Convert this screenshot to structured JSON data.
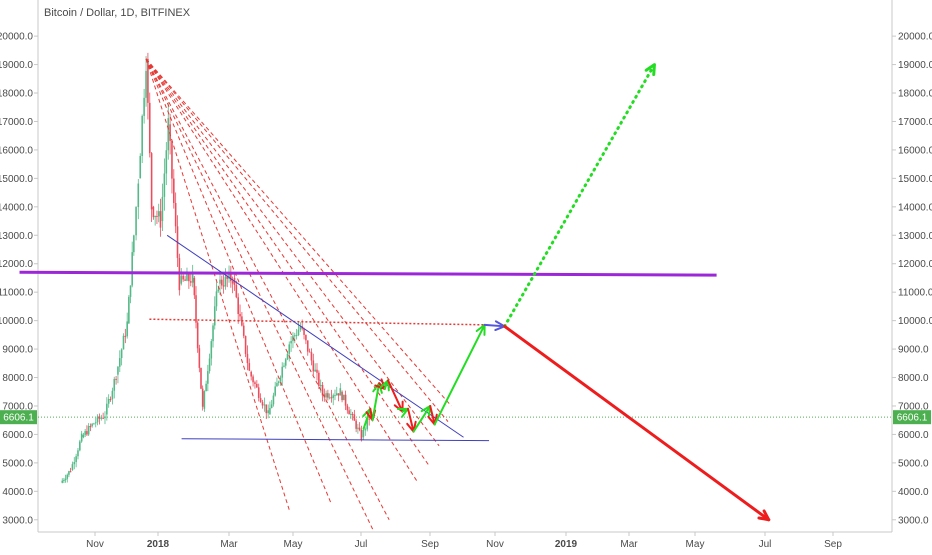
{
  "chart_data": {
    "type": "line",
    "title": "Bitcoin / Dollar, 1D, BITFINEX",
    "x_tick_labels": [
      "Nov",
      "2018",
      "Mar",
      "May",
      "Jul",
      "Sep",
      "Nov",
      "2019",
      "Mar",
      "May",
      "Jul",
      "Sep"
    ],
    "x_tick_bold": [
      false,
      true,
      false,
      false,
      false,
      false,
      false,
      true,
      false,
      false,
      false,
      false
    ],
    "y_ticks": [
      3000,
      4000,
      5000,
      6000,
      7000,
      8000,
      9000,
      10000,
      11000,
      12000,
      13000,
      14000,
      15000,
      16000,
      17000,
      18000,
      19000,
      20000
    ],
    "ylim": [
      2500,
      20300
    ],
    "last_price": "6606.1",
    "last_price_value": 6606.1,
    "grid": false,
    "price_series": [
      {
        "date": "2017-10-01",
        "value": 4300
      },
      {
        "date": "2017-10-10",
        "value": 4750
      },
      {
        "date": "2017-10-20",
        "value": 5900
      },
      {
        "date": "2017-10-31",
        "value": 6400
      },
      {
        "date": "2017-11-10",
        "value": 6700
      },
      {
        "date": "2017-11-20",
        "value": 8100
      },
      {
        "date": "2017-11-30",
        "value": 9900
      },
      {
        "date": "2017-12-06",
        "value": 13000
      },
      {
        "date": "2017-12-10",
        "value": 15000
      },
      {
        "date": "2017-12-17",
        "value": 19200
      },
      {
        "date": "2017-12-22",
        "value": 14000
      },
      {
        "date": "2017-12-30",
        "value": 13500
      },
      {
        "date": "2018-01-06",
        "value": 16900
      },
      {
        "date": "2018-01-16",
        "value": 11300
      },
      {
        "date": "2018-01-28",
        "value": 11500
      },
      {
        "date": "2018-02-06",
        "value": 6900
      },
      {
        "date": "2018-02-20",
        "value": 11300
      },
      {
        "date": "2018-03-05",
        "value": 11500
      },
      {
        "date": "2018-03-20",
        "value": 8200
      },
      {
        "date": "2018-04-06",
        "value": 6700
      },
      {
        "date": "2018-04-25",
        "value": 9200
      },
      {
        "date": "2018-05-05",
        "value": 9800
      },
      {
        "date": "2018-05-25",
        "value": 7400
      },
      {
        "date": "2018-06-10",
        "value": 7500
      },
      {
        "date": "2018-06-29",
        "value": 5900
      },
      {
        "date": "2018-07-06",
        "value": 6600
      }
    ],
    "annotations": {
      "dashed_fan_apex": {
        "date": "2017-12-17",
        "value": 19200
      },
      "fan_line_ends": [
        {
          "date": "2018-04-25",
          "value": 3350
        },
        {
          "date": "2018-06-02",
          "value": 3550
        },
        {
          "date": "2018-07-10",
          "value": 2600
        },
        {
          "date": "2018-07-24",
          "value": 3000
        },
        {
          "date": "2018-08-19",
          "value": 4300
        },
        {
          "date": "2018-08-29",
          "value": 4900
        },
        {
          "date": "2018-09-07",
          "value": 5600
        },
        {
          "date": "2018-09-15",
          "value": 6450
        },
        {
          "date": "2018-09-18",
          "value": 7000
        }
      ],
      "resistance_trendline": [
        {
          "date": "2018-01-05",
          "value": 13000
        },
        {
          "date": "2018-09-29",
          "value": 5900
        }
      ],
      "support_line": [
        {
          "date": "2018-01-18",
          "value": 5850
        },
        {
          "date": "2018-10-22",
          "value": 5780
        }
      ],
      "horizontal_level_purple": [
        {
          "date": "2017-08-25",
          "value": 11700
        },
        {
          "date": "2019-05-15",
          "value": 11600
        }
      ],
      "horizontal_level_red_dotted": [
        {
          "date": "2017-12-20",
          "value": 10050
        },
        {
          "date": "2018-10-22",
          "value": 9850
        }
      ],
      "zigzag_path": [
        {
          "date": "2018-07-01",
          "value": 6200
        },
        {
          "date": "2018-07-07",
          "value": 6900
        },
        {
          "date": "2018-07-09",
          "value": 6500
        },
        {
          "date": "2018-07-15",
          "value": 7800
        },
        {
          "date": "2018-07-20",
          "value": 7600
        },
        {
          "date": "2018-07-23",
          "value": 7900
        },
        {
          "date": "2018-08-05",
          "value": 6800
        },
        {
          "date": "2018-08-10",
          "value": 6900
        },
        {
          "date": "2018-08-15",
          "value": 6100
        },
        {
          "date": "2018-08-30",
          "value": 7000
        },
        {
          "date": "2018-09-03",
          "value": 6350
        }
      ],
      "projection_up_arrow": [
        {
          "date": "2018-09-03",
          "value": 6350
        },
        {
          "date": "2018-10-18",
          "value": 9850
        }
      ],
      "projection_flat_arrow": [
        {
          "date": "2018-10-18",
          "value": 9850
        },
        {
          "date": "2018-11-05",
          "value": 9800
        }
      ],
      "projection_dotted_up": [
        {
          "date": "2018-11-05",
          "value": 9800
        },
        {
          "date": "2019-03-20",
          "value": 19000
        }
      ],
      "projection_down_arrow": [
        {
          "date": "2018-11-05",
          "value": 9800
        },
        {
          "date": "2019-07-01",
          "value": 3000
        }
      ]
    }
  },
  "colors": {
    "price_up": "#53b987",
    "price_down": "#eb4d5c",
    "price_line": "#c0392b",
    "fan": "#e53935",
    "trendline": "#3f3fbf",
    "purple_level": "#9c27d9",
    "projection_up": "#22dd22",
    "projection_down": "#ee1c1c",
    "flat_arrow": "#5555dd",
    "last_price_label": "#4caf50",
    "axis_text": "#4a4a4a",
    "axis_line": "#c8c8c8"
  }
}
